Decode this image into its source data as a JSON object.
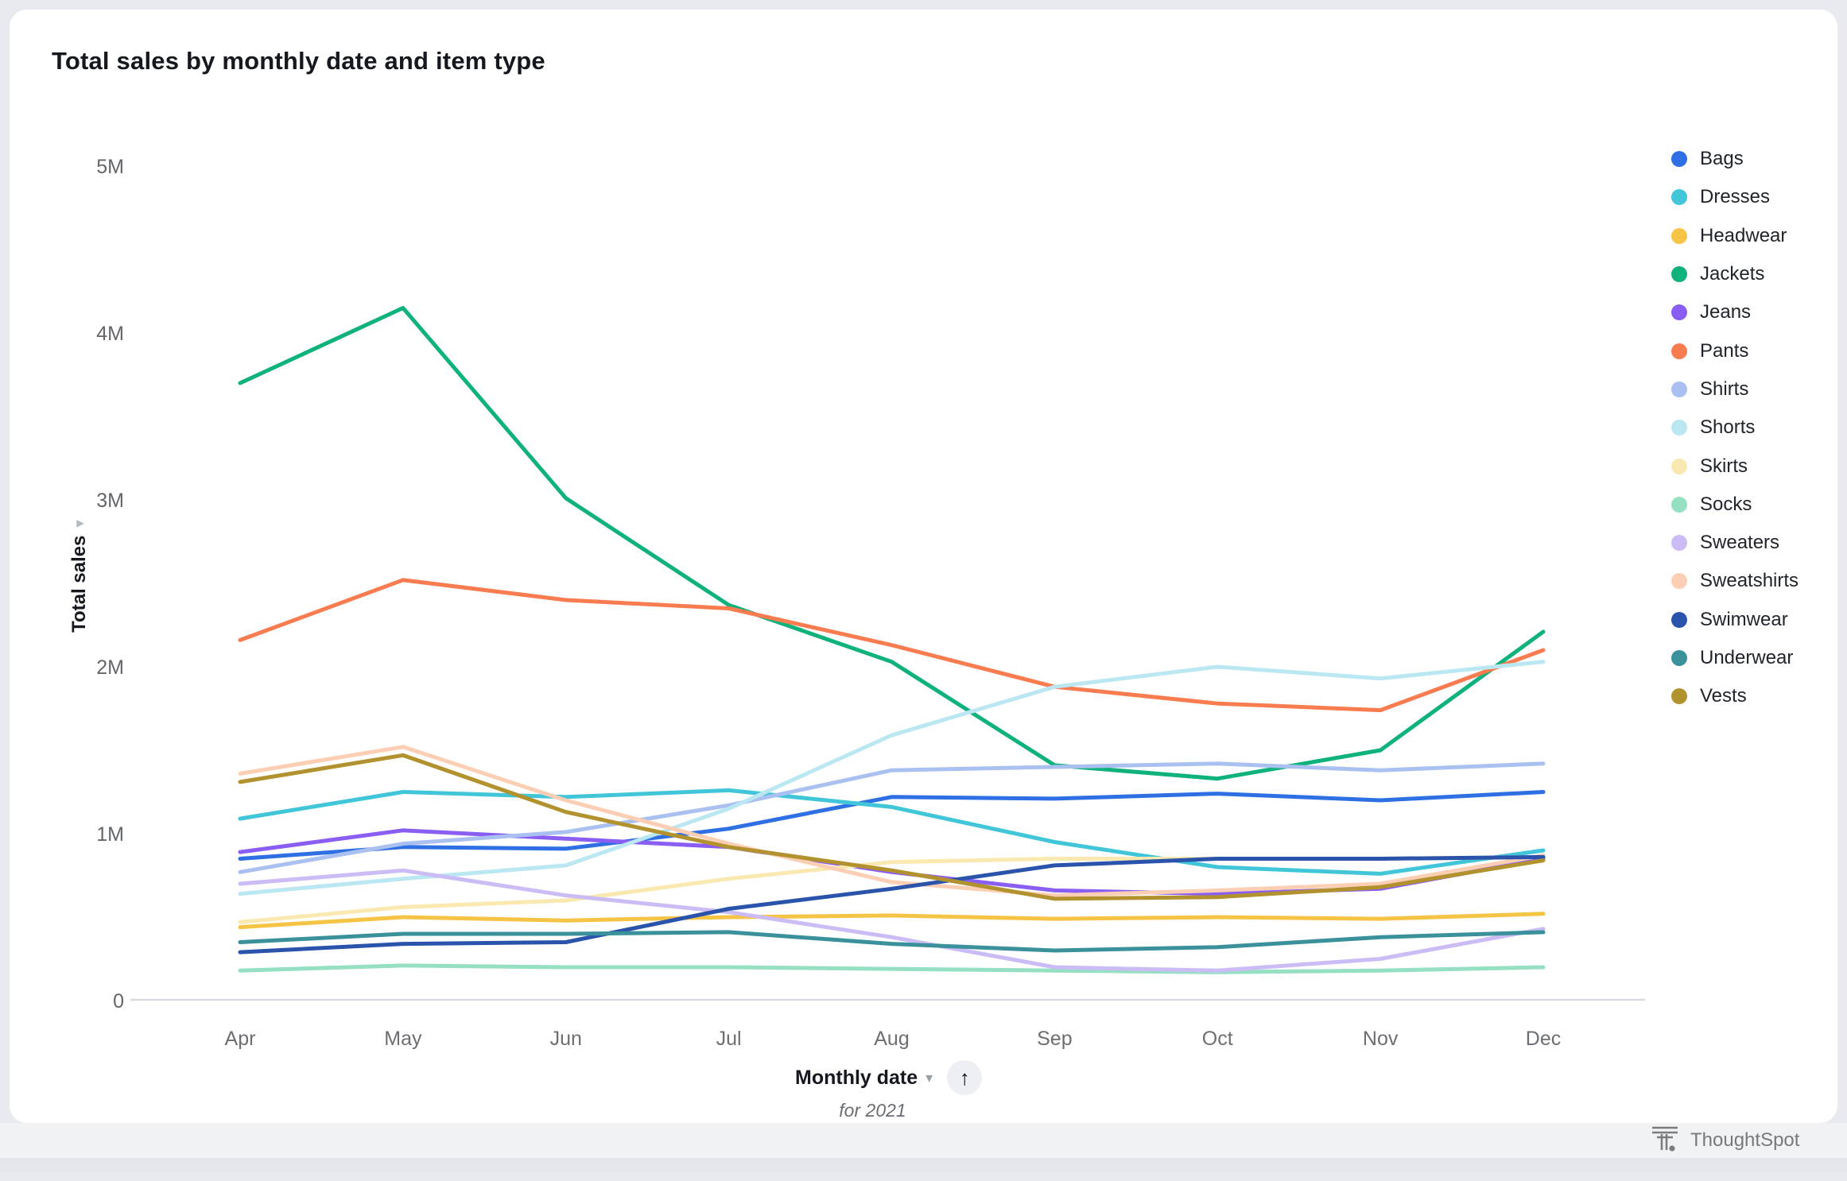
{
  "header": {
    "title": "Total sales by monthly date and item type"
  },
  "y_axis": {
    "label": "Total sales",
    "tick_labels": [
      "0",
      "1M",
      "2M",
      "3M",
      "4M",
      "5M"
    ]
  },
  "x_axis": {
    "label": "Monthly date",
    "note": "for 2021"
  },
  "icons": {
    "y_axis_caret": "▾",
    "x_axis_caret": "▾",
    "sort_arrow": "↑"
  },
  "footer": {
    "brand": "ThoughtSpot"
  },
  "colors": {
    "page_bg": "#e8eaef",
    "card_bg": "#ffffff",
    "axis_line": "#d9dbe0",
    "tick_text": "#63666b",
    "month_text": "#6b6e73",
    "title_text": "#15181e",
    "legend_text": "#20242b",
    "brand_text": "#77797d"
  },
  "chart_data": {
    "type": "line",
    "title": "Total sales by monthly date and item type",
    "xlabel": "Monthly date",
    "xlabel_note": "for 2021",
    "ylabel": "Total sales",
    "categories": [
      "Apr",
      "May",
      "Jun",
      "Jul",
      "Aug",
      "Sep",
      "Oct",
      "Nov",
      "Dec"
    ],
    "y_tick_labels": [
      "0",
      "1M",
      "2M",
      "3M",
      "4M",
      "5M"
    ],
    "y_ticks_millions": [
      0,
      1,
      2,
      3,
      4,
      5
    ],
    "ylim_millions": [
      0,
      5
    ],
    "unit": "millions",
    "grid": false,
    "legend_position": "right",
    "series": [
      {
        "name": "Bags",
        "color": "#2e6fe4",
        "values_millions": [
          0.85,
          0.92,
          0.91,
          1.03,
          1.22,
          1.21,
          1.24,
          1.2,
          1.25
        ]
      },
      {
        "name": "Dresses",
        "color": "#41c6d9",
        "values_millions": [
          1.09,
          1.25,
          1.22,
          1.26,
          1.16,
          0.95,
          0.8,
          0.76,
          0.9
        ]
      },
      {
        "name": "Headwear",
        "color": "#f6c445",
        "values_millions": [
          0.44,
          0.5,
          0.48,
          0.5,
          0.51,
          0.49,
          0.5,
          0.49,
          0.52
        ]
      },
      {
        "name": "Jackets",
        "color": "#0fb27c",
        "values_millions": [
          3.7,
          4.15,
          3.01,
          2.37,
          2.03,
          1.41,
          1.33,
          1.5,
          2.21
        ]
      },
      {
        "name": "Jeans",
        "color": "#8a5ef2",
        "values_millions": [
          0.89,
          1.02,
          0.97,
          0.92,
          0.77,
          0.66,
          0.64,
          0.67,
          0.85
        ]
      },
      {
        "name": "Pants",
        "color": "#f87c50",
        "values_millions": [
          2.16,
          2.52,
          2.4,
          2.35,
          2.13,
          1.88,
          1.78,
          1.74,
          2.1
        ]
      },
      {
        "name": "Shirts",
        "color": "#a9c0f1",
        "values_millions": [
          0.77,
          0.94,
          1.01,
          1.17,
          1.38,
          1.4,
          1.42,
          1.38,
          1.42
        ]
      },
      {
        "name": "Shorts",
        "color": "#bae7f2",
        "values_millions": [
          0.64,
          0.73,
          0.81,
          1.15,
          1.59,
          1.88,
          2.0,
          1.93,
          2.03
        ]
      },
      {
        "name": "Skirts",
        "color": "#f9e8b0",
        "values_millions": [
          0.47,
          0.56,
          0.6,
          0.73,
          0.83,
          0.85,
          0.85,
          0.85,
          0.86
        ]
      },
      {
        "name": "Socks",
        "color": "#95dfc2",
        "values_millions": [
          0.18,
          0.21,
          0.2,
          0.2,
          0.19,
          0.18,
          0.17,
          0.18,
          0.2
        ]
      },
      {
        "name": "Sweaters",
        "color": "#ccbcf6",
        "values_millions": [
          0.7,
          0.78,
          0.63,
          0.53,
          0.38,
          0.2,
          0.18,
          0.25,
          0.43
        ]
      },
      {
        "name": "Sweatshirts",
        "color": "#fcceb4",
        "values_millions": [
          1.36,
          1.52,
          1.2,
          0.94,
          0.71,
          0.63,
          0.66,
          0.7,
          0.87
        ]
      },
      {
        "name": "Swimwear",
        "color": "#2a53ab",
        "values_millions": [
          0.29,
          0.34,
          0.35,
          0.55,
          0.67,
          0.81,
          0.85,
          0.85,
          0.86
        ]
      },
      {
        "name": "Underwear",
        "color": "#3a909b",
        "values_millions": [
          0.35,
          0.4,
          0.4,
          0.41,
          0.34,
          0.3,
          0.32,
          0.38,
          0.41
        ]
      },
      {
        "name": "Vests",
        "color": "#b2922f",
        "values_millions": [
          1.31,
          1.47,
          1.13,
          0.92,
          0.78,
          0.61,
          0.62,
          0.68,
          0.84
        ]
      }
    ]
  }
}
